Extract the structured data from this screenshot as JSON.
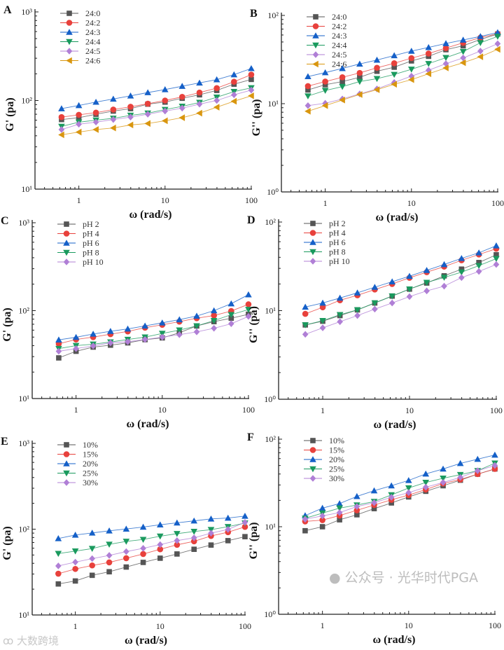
{
  "chart_data": [
    {
      "type": "line",
      "panel": "A",
      "title": "",
      "xlabel": "ω (rad/s)",
      "ylabel": "G' (pa)",
      "xscale": "log",
      "yscale": "log",
      "xlim": [
        0.31,
        102
      ],
      "ylim": [
        10,
        1000
      ],
      "x_ticks": [
        "1",
        "10",
        "100"
      ],
      "y_ticks": [
        "10¹",
        "10²",
        "10³"
      ],
      "legend_position": "top-left",
      "x": [
        0.63,
        1,
        1.58,
        2.51,
        3.98,
        6.31,
        10,
        15.8,
        25.1,
        39.8,
        63.1,
        100
      ],
      "series": [
        {
          "name": "24:0",
          "color": "#555555",
          "marker": "square",
          "values": [
            61,
            64,
            70,
            76,
            81,
            91,
            96,
            106,
            116,
            130,
            153,
            173
          ]
        },
        {
          "name": "24:2",
          "color": "#e8413c",
          "marker": "circle",
          "values": [
            65,
            69,
            73,
            79,
            85,
            92,
            100,
            110,
            123,
            138,
            163,
            196
          ]
        },
        {
          "name": "24:3",
          "color": "#1560c8",
          "marker": "triangle-up",
          "values": [
            81,
            88,
            96,
            104,
            113,
            123,
            133,
            145,
            158,
            172,
            196,
            230
          ]
        },
        {
          "name": "24:4",
          "color": "#1a9a5e",
          "marker": "triangle-down",
          "values": [
            51,
            57,
            60,
            63,
            68,
            72,
            79,
            86,
            95,
            109,
            126,
            139
          ]
        },
        {
          "name": "24:5",
          "color": "#b07fd6",
          "marker": "diamond",
          "values": [
            47,
            54,
            57,
            61,
            65,
            70,
            76,
            82,
            91,
            100,
            116,
            131
          ]
        },
        {
          "name": "24:6",
          "color": "#d9960f",
          "marker": "triangle-left",
          "values": [
            41,
            44,
            47,
            49,
            53,
            55,
            59,
            64,
            72,
            84,
            98,
            113
          ]
        }
      ]
    },
    {
      "type": "line",
      "panel": "B",
      "title": "",
      "xlabel": "ω (rad/s)",
      "ylabel": "G'' (pa)",
      "xscale": "log",
      "yscale": "log",
      "xlim": [
        0.31,
        102
      ],
      "ylim": [
        1,
        100
      ],
      "x_ticks": [
        "1",
        "10",
        "100"
      ],
      "y_ticks": [
        "10⁰",
        "10¹",
        "10²"
      ],
      "legend_position": "top-left",
      "x": [
        0.63,
        1,
        1.58,
        2.51,
        3.98,
        6.31,
        10,
        15.8,
        25.1,
        39.8,
        63.1,
        100
      ],
      "series": [
        {
          "name": "24:0",
          "color": "#555555",
          "marker": "square",
          "values": [
            14.3,
            16.4,
            17.8,
            19.9,
            23.3,
            25.9,
            30.5,
            34.4,
            40.9,
            45.3,
            53.4,
            61.5
          ]
        },
        {
          "name": "24:2",
          "color": "#e8413c",
          "marker": "circle",
          "values": [
            15.8,
            17.8,
            19.9,
            22.3,
            25.5,
            28.7,
            32.8,
            37,
            42.6,
            49,
            56,
            62
          ]
        },
        {
          "name": "24:3",
          "color": "#1560c8",
          "marker": "triangle-up",
          "values": [
            20.3,
            22.5,
            25.1,
            28.2,
            31.2,
            35.1,
            39.4,
            43.4,
            48.1,
            52.7,
            57.8,
            64
          ]
        },
        {
          "name": "24:4",
          "color": "#1a9a5e",
          "marker": "triangle-down",
          "values": [
            12.2,
            14.1,
            15.6,
            17.8,
            19.2,
            21.4,
            24.5,
            28.4,
            33.2,
            38.9,
            49,
            57.8
          ]
        },
        {
          "name": "24:5",
          "color": "#b07fd6",
          "marker": "diamond",
          "values": [
            9.5,
            10.1,
            11.3,
            12.9,
            14.7,
            17.4,
            20.5,
            23.9,
            28.4,
            33,
            39.4,
            47.8
          ]
        },
        {
          "name": "24:6",
          "color": "#d9960f",
          "marker": "triangle-left",
          "values": [
            8.2,
            9.5,
            11,
            12.7,
            14.4,
            16.6,
            18.7,
            21.8,
            25.4,
            29.1,
            34,
            41.3
          ]
        }
      ]
    },
    {
      "type": "line",
      "panel": "C",
      "title": "",
      "xlabel": "ω (rad/s)",
      "ylabel": "G' (pa)",
      "xscale": "log",
      "yscale": "log",
      "xlim": [
        0.31,
        102
      ],
      "ylim": [
        10,
        1000
      ],
      "x_ticks": [
        "1",
        "10",
        "100"
      ],
      "y_ticks": [
        "10¹",
        "10²",
        "10³"
      ],
      "legend_position": "top-left",
      "x": [
        0.63,
        1,
        1.58,
        2.51,
        3.98,
        6.31,
        10,
        15.8,
        25.1,
        39.8,
        63.1,
        100
      ],
      "series": [
        {
          "name": "pH 2",
          "color": "#555555",
          "marker": "square",
          "values": [
            29,
            34.5,
            38.5,
            40.5,
            43,
            46.8,
            49,
            56,
            67,
            75,
            82,
            91
          ]
        },
        {
          "name": "pH 4",
          "color": "#e8413c",
          "marker": "circle",
          "values": [
            42,
            47,
            50,
            54,
            58,
            64,
            69,
            75,
            82,
            88,
            99,
            118
          ]
        },
        {
          "name": "pH 6",
          "color": "#1560c8",
          "marker": "triangle-up",
          "values": [
            46.5,
            49.8,
            54.2,
            58.3,
            62,
            67,
            72.7,
            79,
            86.9,
            100,
            120,
            152
          ]
        },
        {
          "name": "pH 8",
          "color": "#1a9a5e",
          "marker": "triangle-down",
          "values": [
            37,
            40,
            41.5,
            44,
            47,
            50,
            55,
            60,
            67,
            77,
            90,
            103
          ]
        },
        {
          "name": "pH 10",
          "color": "#b07fd6",
          "marker": "diamond",
          "values": [
            34.5,
            37,
            39.7,
            43,
            44.3,
            47,
            50,
            53.3,
            57.3,
            63,
            71,
            86
          ]
        }
      ]
    },
    {
      "type": "line",
      "panel": "D",
      "title": "",
      "xlabel": "ω (rad/s)",
      "ylabel": "G'' (pa)",
      "xscale": "log",
      "yscale": "log",
      "xlim": [
        0.31,
        102
      ],
      "ylim": [
        1,
        100
      ],
      "x_ticks": [
        "1",
        "10",
        "100"
      ],
      "y_ticks": [
        "10⁰",
        "10¹",
        "10²"
      ],
      "legend_position": "top-left",
      "x": [
        0.63,
        1,
        1.58,
        2.51,
        3.98,
        6.31,
        10,
        15.8,
        25.1,
        39.8,
        63.1,
        100
      ],
      "series": [
        {
          "name": "pH 2",
          "color": "#555555",
          "marker": "square",
          "values": [
            6.9,
            7.6,
            8.8,
            10.2,
            12.2,
            14.6,
            17.5,
            20.5,
            24.7,
            29.4,
            34.9,
            42.7
          ]
        },
        {
          "name": "pH 4",
          "color": "#e8413c",
          "marker": "circle",
          "values": [
            9.2,
            10.9,
            13.1,
            14.9,
            17.3,
            20,
            23.5,
            27.2,
            31.4,
            37,
            43,
            50
          ]
        },
        {
          "name": "pH 6",
          "color": "#1560c8",
          "marker": "triangle-up",
          "values": [
            11,
            12.2,
            13.9,
            15.9,
            18.4,
            21.2,
            24.5,
            28.5,
            33.2,
            38.9,
            45,
            54
          ]
        },
        {
          "name": "pH 8",
          "color": "#1a9a5e",
          "marker": "triangle-down",
          "values": [
            6.9,
            7.7,
            9,
            10.2,
            12.2,
            14.6,
            17.5,
            20.8,
            23.7,
            27.2,
            32.2,
            38.6
          ]
        },
        {
          "name": "pH 10",
          "color": "#b07fd6",
          "marker": "diamond",
          "values": [
            5.4,
            6.4,
            7.5,
            8.8,
            10.4,
            12.2,
            14.4,
            16.7,
            18.9,
            23.6,
            27.7,
            33.2
          ]
        }
      ]
    },
    {
      "type": "line",
      "panel": "E",
      "title": "",
      "xlabel": "ω (rad/s)",
      "ylabel": "G' (pa)",
      "xscale": "log",
      "yscale": "log",
      "xlim": [
        0.31,
        102
      ],
      "ylim": [
        10,
        1000
      ],
      "x_ticks": [
        "1",
        "10",
        "100"
      ],
      "y_ticks": [
        "10¹",
        "10²",
        "10³"
      ],
      "legend_position": "top-left",
      "x": [
        0.63,
        1,
        1.58,
        2.51,
        3.98,
        6.31,
        10,
        15.8,
        25.1,
        39.8,
        63.1,
        100
      ],
      "series": [
        {
          "name": "10%",
          "color": "#555555",
          "marker": "square",
          "values": [
            23,
            24.9,
            29,
            31.9,
            36.2,
            41,
            45.9,
            51.4,
            58.3,
            65.3,
            73.5,
            81.8
          ]
        },
        {
          "name": "15%",
          "color": "#e8413c",
          "marker": "circle",
          "values": [
            30.3,
            34.4,
            37.8,
            41,
            45.9,
            51.4,
            58.3,
            65.7,
            72.2,
            83.4,
            92.2,
            106.5
          ]
        },
        {
          "name": "20%",
          "color": "#1560c8",
          "marker": "triangle-up",
          "values": [
            77.8,
            85.5,
            90.4,
            95.7,
            100.6,
            106,
            112.7,
            118.5,
            125,
            131.8,
            135,
            142
          ]
        },
        {
          "name": "25%",
          "color": "#1a9a5e",
          "marker": "triangle-down",
          "values": [
            52,
            55.5,
            59.4,
            66.5,
            72,
            75.8,
            82.8,
            88.7,
            93.9,
            98.8,
            107,
            117.7
          ]
        },
        {
          "name": "30%",
          "color": "#b07fd6",
          "marker": "diamond",
          "values": [
            37.3,
            41.3,
            45.4,
            49.5,
            54.8,
            59.8,
            66.1,
            73.6,
            79.3,
            89.9,
            99.4,
            120
          ]
        }
      ]
    },
    {
      "type": "line",
      "panel": "F",
      "title": "",
      "xlabel": "ω (rad/s)",
      "ylabel": "G'' (pa)",
      "xscale": "log",
      "yscale": "log",
      "xlim": [
        0.31,
        102
      ],
      "ylim": [
        1,
        100
      ],
      "x_ticks": [
        "1",
        "10",
        "100"
      ],
      "y_ticks": [
        "10⁰",
        "10¹",
        "10²"
      ],
      "legend_position": "top-left",
      "x": [
        0.63,
        1,
        1.58,
        2.51,
        3.98,
        6.31,
        10,
        15.8,
        25.1,
        39.8,
        63.1,
        100
      ],
      "series": [
        {
          "name": "10%",
          "color": "#555555",
          "marker": "square",
          "values": [
            9,
            10,
            12,
            13.7,
            16.1,
            18.7,
            21.9,
            25.4,
            29.4,
            34,
            39.9,
            45.7
          ]
        },
        {
          "name": "15%",
          "color": "#e8413c",
          "marker": "circle",
          "values": [
            11.5,
            11.9,
            13.4,
            15.4,
            17.7,
            20.3,
            23,
            26.6,
            31.2,
            34.6,
            39.9,
            45.7
          ]
        },
        {
          "name": "20%",
          "color": "#1560c8",
          "marker": "triangle-up",
          "values": [
            13.4,
            16.3,
            18.4,
            22.2,
            25.8,
            29.4,
            33.8,
            40.1,
            45.7,
            52.9,
            59.1,
            66
          ]
        },
        {
          "name": "25%",
          "color": "#1a9a5e",
          "marker": "triangle-down",
          "values": [
            12.5,
            14.3,
            16.3,
            17.7,
            19.4,
            23.1,
            27.7,
            32,
            35.8,
            39.3,
            43.6,
            53.2
          ]
        },
        {
          "name": "30%",
          "color": "#b07fd6",
          "marker": "diamond",
          "values": [
            12.2,
            13.3,
            14.5,
            17,
            18.8,
            21.7,
            24.5,
            28.3,
            32,
            36.6,
            43.6,
            50.1
          ]
        }
      ]
    }
  ],
  "watermarks": {
    "left": "大数跨境",
    "right": "公众号 · 光华时代PGA"
  }
}
